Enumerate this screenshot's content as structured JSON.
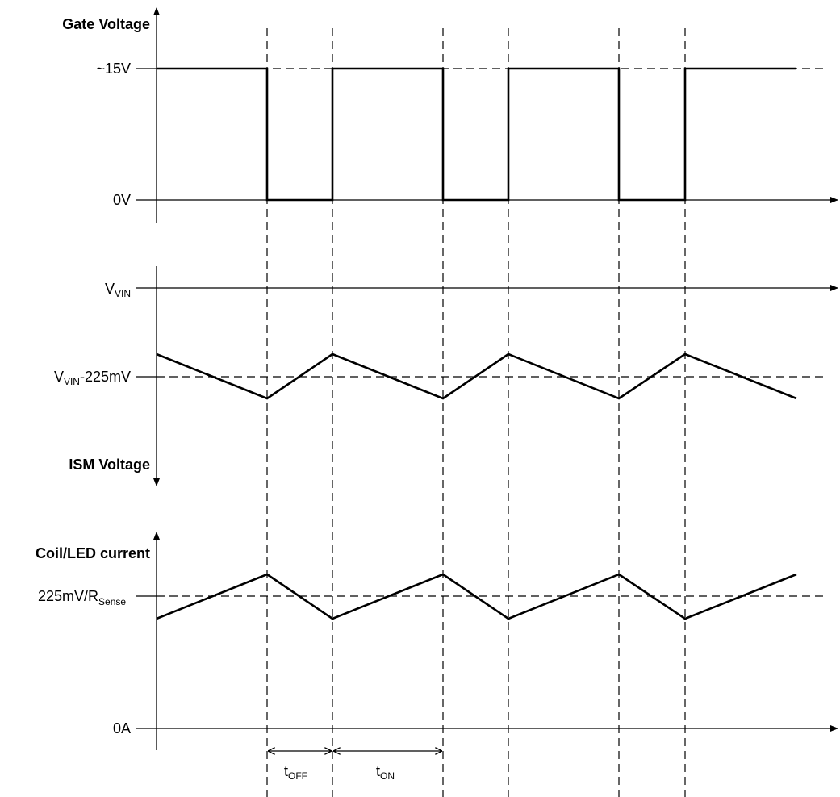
{
  "gate": {
    "title": "Gate Voltage",
    "high_label": "~15V",
    "low_label": "0V"
  },
  "ism": {
    "vin_main": "V",
    "vin_sub": "VIN",
    "thr_main": "V",
    "thr_sub": "VIN",
    "thr_suffix": "-225mV",
    "title": "ISM Voltage"
  },
  "coil": {
    "title": "Coil/LED current",
    "thr_main": "225mV/R",
    "thr_sub": "Sense",
    "zero_label": "0A"
  },
  "timing": {
    "toff_main": "t",
    "toff_sub": "OFF",
    "ton_main": "t",
    "ton_sub": "ON"
  },
  "colors": {
    "line": "#000000",
    "background": "#ffffff"
  }
}
